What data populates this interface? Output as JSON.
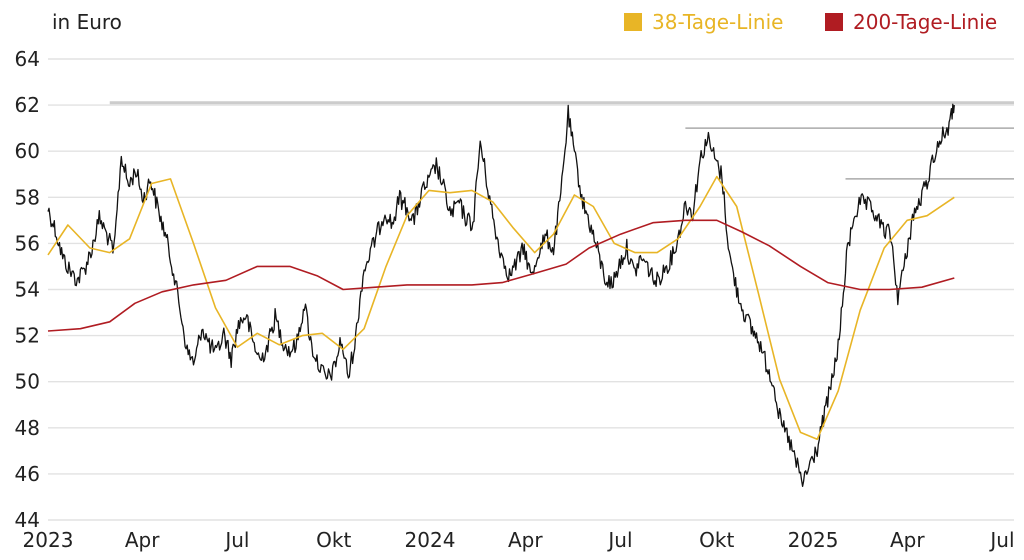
{
  "chart_data": {
    "type": "line",
    "unit_label": "in Euro",
    "ylim": [
      44,
      64
    ],
    "y_ticks": [
      44,
      46,
      48,
      50,
      52,
      54,
      56,
      58,
      60,
      62,
      64
    ],
    "y_tick_labels": [
      "44",
      "46",
      "48",
      "50",
      "52",
      "54",
      "56",
      "58",
      "60",
      "62",
      "64"
    ],
    "x_range": [
      "2023-01-01",
      "2025-07-12"
    ],
    "x_ticks": [
      {
        "date": "2023-01-01",
        "label": "2023"
      },
      {
        "date": "2023-04-01",
        "label": "Apr"
      },
      {
        "date": "2023-07-01",
        "label": "Jul"
      },
      {
        "date": "2023-10-01",
        "label": "Okt"
      },
      {
        "date": "2024-01-01",
        "label": "2024"
      },
      {
        "date": "2024-04-01",
        "label": "Apr"
      },
      {
        "date": "2024-07-01",
        "label": "Jul"
      },
      {
        "date": "2024-10-01",
        "label": "Okt"
      },
      {
        "date": "2025-01-01",
        "label": "2025"
      },
      {
        "date": "2025-04-01",
        "label": "Apr"
      },
      {
        "date": "2025-07-01",
        "label": "Jul"
      }
    ],
    "grid": "horizontal",
    "legend_position": "top-right",
    "series": [
      {
        "name": "",
        "color": "#111111",
        "points": [
          [
            "2023-01-01",
            57.5
          ],
          [
            "2023-01-08",
            56.6
          ],
          [
            "2023-01-15",
            55.4
          ],
          [
            "2023-01-22",
            54.8
          ],
          [
            "2023-01-29",
            54.4
          ],
          [
            "2023-02-05",
            54.9
          ],
          [
            "2023-02-12",
            55.8
          ],
          [
            "2023-02-19",
            57.1
          ],
          [
            "2023-02-26",
            56.4
          ],
          [
            "2023-03-05",
            55.6
          ],
          [
            "2023-03-12",
            59.8
          ],
          [
            "2023-03-19",
            58.5
          ],
          [
            "2023-03-26",
            59.2
          ],
          [
            "2023-04-02",
            57.9
          ],
          [
            "2023-04-09",
            58.8
          ],
          [
            "2023-04-16",
            57.5
          ],
          [
            "2023-04-23",
            56.4
          ],
          [
            "2023-04-30",
            55.0
          ],
          [
            "2023-05-07",
            53.2
          ],
          [
            "2023-05-14",
            51.3
          ],
          [
            "2023-05-21",
            50.8
          ],
          [
            "2023-05-28",
            52.4
          ],
          [
            "2023-06-04",
            51.6
          ],
          [
            "2023-06-11",
            51.2
          ],
          [
            "2023-06-18",
            52.1
          ],
          [
            "2023-06-25",
            51.0
          ],
          [
            "2023-07-02",
            52.5
          ],
          [
            "2023-07-09",
            52.9
          ],
          [
            "2023-07-16",
            51.7
          ],
          [
            "2023-07-23",
            50.9
          ],
          [
            "2023-07-30",
            51.6
          ],
          [
            "2023-08-06",
            52.8
          ],
          [
            "2023-08-13",
            51.8
          ],
          [
            "2023-08-20",
            51.3
          ],
          [
            "2023-08-27",
            51.7
          ],
          [
            "2023-09-03",
            53.4
          ],
          [
            "2023-09-10",
            51.5
          ],
          [
            "2023-09-17",
            50.7
          ],
          [
            "2023-09-24",
            50.1
          ],
          [
            "2023-10-01",
            50.5
          ],
          [
            "2023-10-08",
            51.8
          ],
          [
            "2023-10-15",
            50.2
          ],
          [
            "2023-10-22",
            51.9
          ],
          [
            "2023-10-29",
            54.7
          ],
          [
            "2023-11-05",
            55.6
          ],
          [
            "2023-11-12",
            56.5
          ],
          [
            "2023-11-19",
            57.4
          ],
          [
            "2023-11-26",
            56.8
          ],
          [
            "2023-12-03",
            58.0
          ],
          [
            "2023-12-10",
            57.5
          ],
          [
            "2023-12-17",
            57.0
          ],
          [
            "2023-12-24",
            58.2
          ],
          [
            "2023-12-31",
            58.7
          ],
          [
            "2024-01-07",
            59.4
          ],
          [
            "2024-01-14",
            58.4
          ],
          [
            "2024-01-21",
            57.2
          ],
          [
            "2024-01-28",
            57.8
          ],
          [
            "2024-02-04",
            57.1
          ],
          [
            "2024-02-11",
            56.8
          ],
          [
            "2024-02-18",
            60.4
          ],
          [
            "2024-02-25",
            58.5
          ],
          [
            "2024-03-03",
            56.6
          ],
          [
            "2024-03-10",
            55.4
          ],
          [
            "2024-03-17",
            54.6
          ],
          [
            "2024-03-24",
            55.2
          ],
          [
            "2024-03-31",
            55.8
          ],
          [
            "2024-04-07",
            54.5
          ],
          [
            "2024-04-14",
            55.7
          ],
          [
            "2024-04-21",
            56.3
          ],
          [
            "2024-04-28",
            55.7
          ],
          [
            "2024-05-05",
            58.1
          ],
          [
            "2024-05-12",
            61.6
          ],
          [
            "2024-05-19",
            59.6
          ],
          [
            "2024-05-26",
            57.8
          ],
          [
            "2024-06-02",
            56.8
          ],
          [
            "2024-06-09",
            55.7
          ],
          [
            "2024-06-16",
            54.5
          ],
          [
            "2024-06-23",
            54.2
          ],
          [
            "2024-06-30",
            55.1
          ],
          [
            "2024-07-07",
            55.8
          ],
          [
            "2024-07-14",
            54.7
          ],
          [
            "2024-07-21",
            55.4
          ],
          [
            "2024-07-28",
            54.9
          ],
          [
            "2024-08-04",
            54.3
          ],
          [
            "2024-08-11",
            54.8
          ],
          [
            "2024-08-18",
            55.3
          ],
          [
            "2024-08-25",
            56.2
          ],
          [
            "2024-09-01",
            57.7
          ],
          [
            "2024-09-08",
            57.3
          ],
          [
            "2024-09-15",
            59.6
          ],
          [
            "2024-09-22",
            60.6
          ],
          [
            "2024-09-29",
            59.7
          ],
          [
            "2024-10-06",
            58.9
          ],
          [
            "2024-10-13",
            55.5
          ],
          [
            "2024-10-20",
            54.0
          ],
          [
            "2024-10-27",
            53.0
          ],
          [
            "2024-11-03",
            52.3
          ],
          [
            "2024-11-10",
            51.8
          ],
          [
            "2024-11-17",
            50.8
          ],
          [
            "2024-11-24",
            50.0
          ],
          [
            "2024-12-01",
            48.2
          ],
          [
            "2024-12-08",
            47.6
          ],
          [
            "2024-12-15",
            46.6
          ],
          [
            "2024-12-22",
            45.6
          ],
          [
            "2024-12-29",
            46.4
          ],
          [
            "2025-01-05",
            47.1
          ],
          [
            "2025-01-12",
            48.6
          ],
          [
            "2025-01-19",
            50.0
          ],
          [
            "2025-01-26",
            51.8
          ],
          [
            "2025-02-02",
            55.4
          ],
          [
            "2025-02-09",
            57.2
          ],
          [
            "2025-02-16",
            57.8
          ],
          [
            "2025-02-23",
            57.6
          ],
          [
            "2025-03-02",
            57.2
          ],
          [
            "2025-03-09",
            56.6
          ],
          [
            "2025-03-16",
            56.4
          ],
          [
            "2025-03-23",
            53.7
          ],
          [
            "2025-03-30",
            55.2
          ],
          [
            "2025-04-06",
            57.1
          ],
          [
            "2025-04-13",
            57.8
          ],
          [
            "2025-04-20",
            58.7
          ],
          [
            "2025-04-27",
            59.9
          ],
          [
            "2025-05-04",
            60.6
          ],
          [
            "2025-05-11",
            61.1
          ],
          [
            "2025-05-16",
            62.0
          ]
        ]
      },
      {
        "name": "38-Tage-Linie",
        "color": "#e8b526",
        "points": [
          [
            "2023-01-01",
            55.5
          ],
          [
            "2023-01-20",
            56.8
          ],
          [
            "2023-02-10",
            55.8
          ],
          [
            "2023-03-01",
            55.6
          ],
          [
            "2023-03-20",
            56.2
          ],
          [
            "2023-04-10",
            58.6
          ],
          [
            "2023-04-28",
            58.8
          ],
          [
            "2023-05-20",
            56.0
          ],
          [
            "2023-06-10",
            53.2
          ],
          [
            "2023-07-01",
            51.5
          ],
          [
            "2023-07-20",
            52.1
          ],
          [
            "2023-08-10",
            51.6
          ],
          [
            "2023-09-01",
            52.0
          ],
          [
            "2023-09-20",
            52.1
          ],
          [
            "2023-10-10",
            51.4
          ],
          [
            "2023-10-30",
            52.3
          ],
          [
            "2023-11-20",
            55.0
          ],
          [
            "2023-12-10",
            57.2
          ],
          [
            "2023-12-31",
            58.3
          ],
          [
            "2024-01-20",
            58.2
          ],
          [
            "2024-02-10",
            58.3
          ],
          [
            "2024-03-01",
            57.8
          ],
          [
            "2024-03-20",
            56.7
          ],
          [
            "2024-04-10",
            55.6
          ],
          [
            "2024-04-28",
            56.4
          ],
          [
            "2024-05-18",
            58.1
          ],
          [
            "2024-06-05",
            57.6
          ],
          [
            "2024-06-25",
            56.0
          ],
          [
            "2024-07-15",
            55.6
          ],
          [
            "2024-08-05",
            55.6
          ],
          [
            "2024-08-25",
            56.2
          ],
          [
            "2024-09-15",
            57.6
          ],
          [
            "2024-10-01",
            58.9
          ],
          [
            "2024-10-20",
            57.6
          ],
          [
            "2024-11-10",
            53.8
          ],
          [
            "2024-11-30",
            50.1
          ],
          [
            "2024-12-20",
            47.8
          ],
          [
            "2025-01-05",
            47.5
          ],
          [
            "2025-01-25",
            49.6
          ],
          [
            "2025-02-15",
            53.1
          ],
          [
            "2025-03-10",
            55.8
          ],
          [
            "2025-04-01",
            57.0
          ],
          [
            "2025-04-20",
            57.2
          ],
          [
            "2025-05-16",
            58.0
          ]
        ]
      },
      {
        "name": "200-Tage-Linie",
        "color": "#b01c22",
        "points": [
          [
            "2023-01-01",
            52.2
          ],
          [
            "2023-02-01",
            52.3
          ],
          [
            "2023-03-01",
            52.6
          ],
          [
            "2023-03-25",
            53.4
          ],
          [
            "2023-04-20",
            53.9
          ],
          [
            "2023-05-20",
            54.2
          ],
          [
            "2023-06-20",
            54.4
          ],
          [
            "2023-07-20",
            55.0
          ],
          [
            "2023-08-20",
            55.0
          ],
          [
            "2023-09-15",
            54.6
          ],
          [
            "2023-10-10",
            54.0
          ],
          [
            "2023-11-10",
            54.1
          ],
          [
            "2023-12-10",
            54.2
          ],
          [
            "2024-01-10",
            54.2
          ],
          [
            "2024-02-10",
            54.2
          ],
          [
            "2024-03-10",
            54.3
          ],
          [
            "2024-04-10",
            54.7
          ],
          [
            "2024-05-10",
            55.1
          ],
          [
            "2024-06-01",
            55.8
          ],
          [
            "2024-07-01",
            56.4
          ],
          [
            "2024-08-01",
            56.9
          ],
          [
            "2024-09-01",
            57.0
          ],
          [
            "2024-10-01",
            57.0
          ],
          [
            "2024-10-25",
            56.5
          ],
          [
            "2024-11-20",
            55.9
          ],
          [
            "2024-12-20",
            55.0
          ],
          [
            "2025-01-15",
            54.3
          ],
          [
            "2025-02-15",
            54.0
          ],
          [
            "2025-03-15",
            54.0
          ],
          [
            "2025-04-15",
            54.1
          ],
          [
            "2025-05-16",
            54.5
          ]
        ]
      }
    ],
    "reference_lines": [
      {
        "y": 62.1,
        "from": "2023-03-01",
        "to": "2025-07-12",
        "color": "#cccccc"
      },
      {
        "y": 61.0,
        "from": "2024-09-01",
        "to": "2025-07-12",
        "color": "#aaaaaa"
      },
      {
        "y": 58.8,
        "from": "2025-02-01",
        "to": "2025-07-12",
        "color": "#aaaaaa"
      }
    ]
  }
}
